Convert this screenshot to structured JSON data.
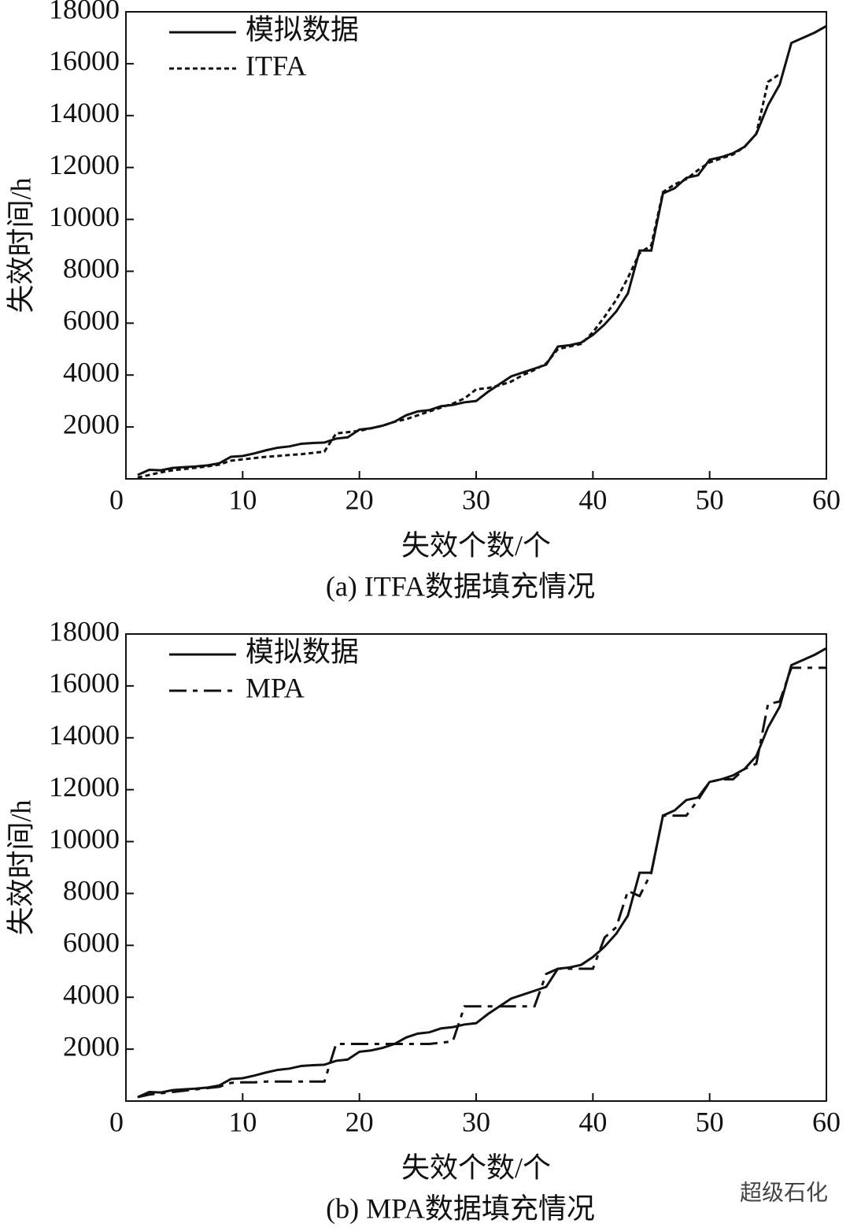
{
  "chart_data": [
    {
      "type": "line",
      "caption": "(a) ITFA数据填充情况",
      "xlabel": "失效个数/个",
      "ylabel": "失效时间/h",
      "xlim": [
        0,
        60
      ],
      "ylim": [
        0,
        18000
      ],
      "xticks": [
        0,
        10,
        20,
        30,
        40,
        50,
        60
      ],
      "yticks": [
        2000,
        4000,
        6000,
        8000,
        10000,
        12000,
        14000,
        16000,
        18000
      ],
      "legend": "upper left",
      "x": [
        1,
        2,
        3,
        4,
        5,
        6,
        7,
        8,
        9,
        10,
        11,
        12,
        13,
        14,
        15,
        16,
        17,
        18,
        19,
        20,
        21,
        22,
        23,
        24,
        25,
        26,
        27,
        28,
        29,
        30,
        31,
        32,
        33,
        34,
        35,
        36,
        37,
        38,
        39,
        40,
        41,
        42,
        43,
        44,
        45,
        46,
        47,
        48,
        49,
        50,
        51,
        52,
        53,
        54,
        55,
        56,
        57,
        58,
        59,
        60
      ],
      "series": [
        {
          "name": "模拟数据",
          "color": "#111111",
          "linestyle": "solid",
          "values": [
            150,
            350,
            330,
            420,
            450,
            480,
            520,
            600,
            850,
            880,
            980,
            1100,
            1200,
            1250,
            1350,
            1380,
            1400,
            1550,
            1600,
            1900,
            1950,
            2050,
            2200,
            2450,
            2600,
            2650,
            2800,
            2850,
            2950,
            3000,
            3350,
            3650,
            3950,
            4100,
            4250,
            4400,
            5100,
            5150,
            5250,
            5550,
            5950,
            6450,
            7150,
            8800,
            8800,
            11000,
            11200,
            11600,
            11700,
            12300,
            12400,
            12550,
            12800,
            13300,
            14400,
            15200,
            16800,
            17000,
            17200,
            17450
          ]
        },
        {
          "name": "ITFA",
          "color": "#111111",
          "linestyle": "dotted",
          "values": [
            50,
            150,
            250,
            330,
            380,
            430,
            480,
            550,
            700,
            750,
            800,
            850,
            880,
            920,
            950,
            1000,
            1050,
            1750,
            1800,
            1850,
            1950,
            2050,
            2200,
            2300,
            2450,
            2600,
            2750,
            2900,
            3100,
            3450,
            3500,
            3600,
            3750,
            4000,
            4200,
            4450,
            5000,
            5100,
            5200,
            5650,
            6250,
            6900,
            7750,
            8700,
            9000,
            11050,
            11350,
            11550,
            11900,
            12200,
            12350,
            12500,
            12800,
            13300,
            15300,
            15600,
            null,
            null,
            null,
            null
          ]
        }
      ]
    },
    {
      "type": "line",
      "caption": "(b) MPA数据填充情况",
      "xlabel": "失效个数/个",
      "ylabel": "失效时间/h",
      "xlim": [
        0,
        60
      ],
      "ylim": [
        0,
        18000
      ],
      "xticks": [
        0,
        10,
        20,
        30,
        40,
        50,
        60
      ],
      "yticks": [
        2000,
        4000,
        6000,
        8000,
        10000,
        12000,
        14000,
        16000,
        18000
      ],
      "legend": "upper left",
      "x": [
        1,
        2,
        3,
        4,
        5,
        6,
        7,
        8,
        9,
        10,
        11,
        12,
        13,
        14,
        15,
        16,
        17,
        18,
        19,
        20,
        21,
        22,
        23,
        24,
        25,
        26,
        27,
        28,
        29,
        30,
        31,
        32,
        33,
        34,
        35,
        36,
        37,
        38,
        39,
        40,
        41,
        42,
        43,
        44,
        45,
        46,
        47,
        48,
        49,
        50,
        51,
        52,
        53,
        54,
        55,
        56,
        57,
        58,
        59,
        60
      ],
      "series": [
        {
          "name": "模拟数据",
          "color": "#111111",
          "linestyle": "solid",
          "values": [
            150,
            350,
            330,
            420,
            450,
            480,
            520,
            600,
            850,
            880,
            980,
            1100,
            1200,
            1250,
            1350,
            1380,
            1400,
            1550,
            1600,
            1900,
            1950,
            2050,
            2200,
            2450,
            2600,
            2650,
            2800,
            2850,
            2950,
            3000,
            3350,
            3650,
            3950,
            4100,
            4250,
            4400,
            5100,
            5150,
            5250,
            5550,
            5950,
            6450,
            7150,
            8800,
            8800,
            11000,
            11200,
            11600,
            11700,
            12300,
            12400,
            12550,
            12800,
            13300,
            14400,
            15200,
            16800,
            17000,
            17200,
            17450
          ]
        },
        {
          "name": "MPA",
          "color": "#111111",
          "linestyle": "dashdot",
          "values": [
            150,
            250,
            300,
            350,
            400,
            450,
            500,
            550,
            700,
            720,
            720,
            750,
            750,
            750,
            750,
            750,
            750,
            2200,
            2200,
            2200,
            2200,
            2200,
            2200,
            2200,
            2200,
            2200,
            2250,
            2300,
            3650,
            3650,
            3650,
            3650,
            3650,
            3650,
            3650,
            4900,
            5100,
            5100,
            5100,
            5100,
            6300,
            6700,
            8100,
            7900,
            8800,
            11000,
            11000,
            11000,
            11600,
            12300,
            12400,
            12400,
            12800,
            13000,
            15300,
            15400,
            16700,
            16700,
            16700,
            16700
          ]
        }
      ]
    }
  ],
  "watermark": "超级石化"
}
